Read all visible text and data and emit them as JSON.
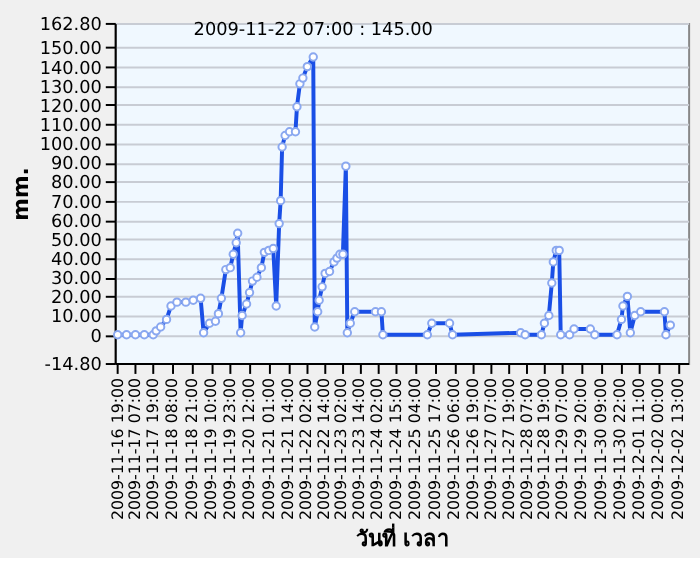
{
  "chart_data": {
    "type": "line",
    "xlabel": "วันที่ เวลา",
    "ylabel": "mm.",
    "x": [
      "2009-11-16T19:00",
      "2009-11-17T01:00",
      "2009-11-17T07:00",
      "2009-11-17T13:00",
      "2009-11-17T19:00",
      "2009-11-17T21:00",
      "2009-11-18T00:00",
      "2009-11-18T04:00",
      "2009-11-18T07:00",
      "2009-11-18T11:00",
      "2009-11-18T17:00",
      "2009-11-18T22:00",
      "2009-11-19T03:00",
      "2009-11-19T05:00",
      "2009-11-19T09:00",
      "2009-11-19T13:00",
      "2009-11-19T15:00",
      "2009-11-19T17:00",
      "2009-11-19T20:00",
      "2009-11-19T23:00",
      "2009-11-20T01:00",
      "2009-11-20T03:00",
      "2009-11-20T04:00",
      "2009-11-20T06:00",
      "2009-11-20T07:00",
      "2009-11-20T10:00",
      "2009-11-20T12:00",
      "2009-11-20T14:00",
      "2009-11-20T17:00",
      "2009-11-20T20:00",
      "2009-11-20T22:00",
      "2009-11-21T01:00",
      "2009-11-21T04:00",
      "2009-11-21T06:00",
      "2009-11-21T08:00",
      "2009-11-21T09:00",
      "2009-11-21T10:00",
      "2009-11-21T12:00",
      "2009-11-21T15:00",
      "2009-11-21T19:00",
      "2009-11-21T20:00",
      "2009-11-21T22:00",
      "2009-11-22T00:00",
      "2009-11-22T03:00",
      "2009-11-22T07:00",
      "2009-11-22T08:00",
      "2009-11-22T10:00",
      "2009-11-22T11:00",
      "2009-11-22T13:00",
      "2009-11-22T15:00",
      "2009-11-22T18:00",
      "2009-11-22T21:00",
      "2009-11-22T23:00",
      "2009-11-23T01:00",
      "2009-11-23T03:00",
      "2009-11-23T05:00",
      "2009-11-23T06:00",
      "2009-11-23T08:00",
      "2009-11-23T11:00",
      "2009-11-24T01:00",
      "2009-11-24T05:00",
      "2009-11-24T06:00",
      "2009-11-25T12:00",
      "2009-11-25T15:00",
      "2009-11-26T03:00",
      "2009-11-26T05:00",
      "2009-11-28T03:00",
      "2009-11-28T06:00",
      "2009-11-28T17:00",
      "2009-11-28T19:00",
      "2009-11-28T22:00",
      "2009-11-29T00:00",
      "2009-11-29T01:00",
      "2009-11-29T03:00",
      "2009-11-29T05:00",
      "2009-11-29T06:00",
      "2009-11-29T12:00",
      "2009-11-29T15:00",
      "2009-11-30T02:00",
      "2009-11-30T05:00",
      "2009-11-30T20:00",
      "2009-11-30T23:00",
      "2009-12-01T00:00",
      "2009-12-01T03:00",
      "2009-12-01T05:00",
      "2009-12-01T08:00",
      "2009-12-01T12:00",
      "2009-12-02T04:00",
      "2009-12-02T05:00",
      "2009-12-02T08:00"
    ],
    "series": [
      {
        "color": "#1a4fe6",
        "values": [
          0,
          0,
          0,
          0,
          0,
          2,
          4,
          8,
          15,
          17,
          17,
          18,
          19,
          1,
          6,
          7,
          11,
          19,
          34,
          35,
          42,
          48,
          53,
          1,
          10,
          16,
          22,
          28,
          30,
          35,
          43,
          44,
          45,
          15,
          58,
          70,
          98,
          104,
          106,
          106,
          119,
          131,
          134,
          140,
          145,
          4,
          12,
          18,
          25,
          32,
          33,
          38,
          40,
          42,
          42,
          88,
          1,
          6,
          12,
          12,
          12,
          0,
          0,
          6,
          6,
          0,
          1,
          0,
          0,
          6,
          10,
          27,
          38,
          44,
          44,
          0,
          0,
          3,
          3,
          0,
          0,
          8,
          15,
          20,
          1,
          10,
          12,
          12,
          0,
          5
        ]
      }
    ],
    "marker": "circle",
    "line_style": "solid",
    "grid": "y",
    "xlim": [
      "2009-11-16T17:00",
      "2009-12-02T20:00"
    ],
    "xticks": [
      {
        "value": "2009-11-16T19:00",
        "label": "2009-11-16 19:00"
      },
      {
        "value": "2009-11-17T07:00",
        "label": "2009-11-17 07:00"
      },
      {
        "value": "2009-11-17T19:00",
        "label": "2009-11-17 19:00"
      },
      {
        "value": "2009-11-18T08:00",
        "label": "2009-11-18 08:00"
      },
      {
        "value": "2009-11-18T21:00",
        "label": "2009-11-18 21:00"
      },
      {
        "value": "2009-11-19T10:00",
        "label": "2009-11-19 10:00"
      },
      {
        "value": "2009-11-19T23:00",
        "label": "2009-11-19 23:00"
      },
      {
        "value": "2009-11-20T12:00",
        "label": "2009-11-20 12:00"
      },
      {
        "value": "2009-11-21T01:00",
        "label": "2009-11-21 01:00"
      },
      {
        "value": "2009-11-21T14:00",
        "label": "2009-11-21 14:00"
      },
      {
        "value": "2009-11-22T02:00",
        "label": "2009-11-22 02:00"
      },
      {
        "value": "2009-11-22T14:00",
        "label": "2009-11-22 14:00"
      },
      {
        "value": "2009-11-23T02:00",
        "label": "2009-11-23 02:00"
      },
      {
        "value": "2009-11-23T14:00",
        "label": "2009-11-23 14:00"
      },
      {
        "value": "2009-11-24T02:00",
        "label": "2009-11-24 02:00"
      },
      {
        "value": "2009-11-24T15:00",
        "label": "2009-11-24 15:00"
      },
      {
        "value": "2009-11-25T04:00",
        "label": "2009-11-25 04:00"
      },
      {
        "value": "2009-11-25T17:00",
        "label": "2009-11-25 17:00"
      },
      {
        "value": "2009-11-26T06:00",
        "label": "2009-11-26 06:00"
      },
      {
        "value": "2009-11-26T19:00",
        "label": "2009-11-26 19:00"
      },
      {
        "value": "2009-11-27T07:00",
        "label": "2009-11-27 07:00"
      },
      {
        "value": "2009-11-27T19:00",
        "label": "2009-11-27 19:00"
      },
      {
        "value": "2009-11-28T07:00",
        "label": "2009-11-28 07:00"
      },
      {
        "value": "2009-11-28T19:00",
        "label": "2009-11-28 19:00"
      },
      {
        "value": "2009-11-29T07:00",
        "label": "2009-11-29 07:00"
      },
      {
        "value": "2009-11-29T20:00",
        "label": "2009-11-29 20:00"
      },
      {
        "value": "2009-11-30T09:00",
        "label": "2009-11-30 09:00"
      },
      {
        "value": "2009-11-30T22:00",
        "label": "2009-11-30 22:00"
      },
      {
        "value": "2009-12-01T11:00",
        "label": "2009-12-01 11:00"
      },
      {
        "value": "2009-12-02T00:00",
        "label": "2009-12-02 00:00"
      },
      {
        "value": "2009-12-02T13:00",
        "label": "2009-12-02 13:00"
      }
    ],
    "ylim": [
      -14.8,
      162.8
    ],
    "yticks": [
      {
        "value": -14.8,
        "label": "-14.80"
      },
      0,
      {
        "value": 10,
        "label": "10.00"
      },
      {
        "value": 20,
        "label": "20.00"
      },
      {
        "value": 30,
        "label": "30.00"
      },
      {
        "value": 40,
        "label": "40.00"
      },
      {
        "value": 50,
        "label": "50.00"
      },
      {
        "value": 60,
        "label": "60.00"
      },
      {
        "value": 70,
        "label": "70.00"
      },
      {
        "value": 80,
        "label": "80.00"
      },
      {
        "value": 90,
        "label": "90.00"
      },
      {
        "value": 100,
        "label": "100.00"
      },
      {
        "value": 110,
        "label": "110.00"
      },
      {
        "value": 120,
        "label": "120.00"
      },
      {
        "value": 130,
        "label": "130.00"
      },
      {
        "value": 140,
        "label": "140.00"
      },
      {
        "value": 150,
        "label": "150.00"
      },
      {
        "value": 162.8,
        "label": "162.80"
      }
    ],
    "annotations": [
      {
        "text": "2009-11-22 07:00 : 145.00",
        "x": "2009-11-22T07:00",
        "y": 145
      }
    ]
  }
}
